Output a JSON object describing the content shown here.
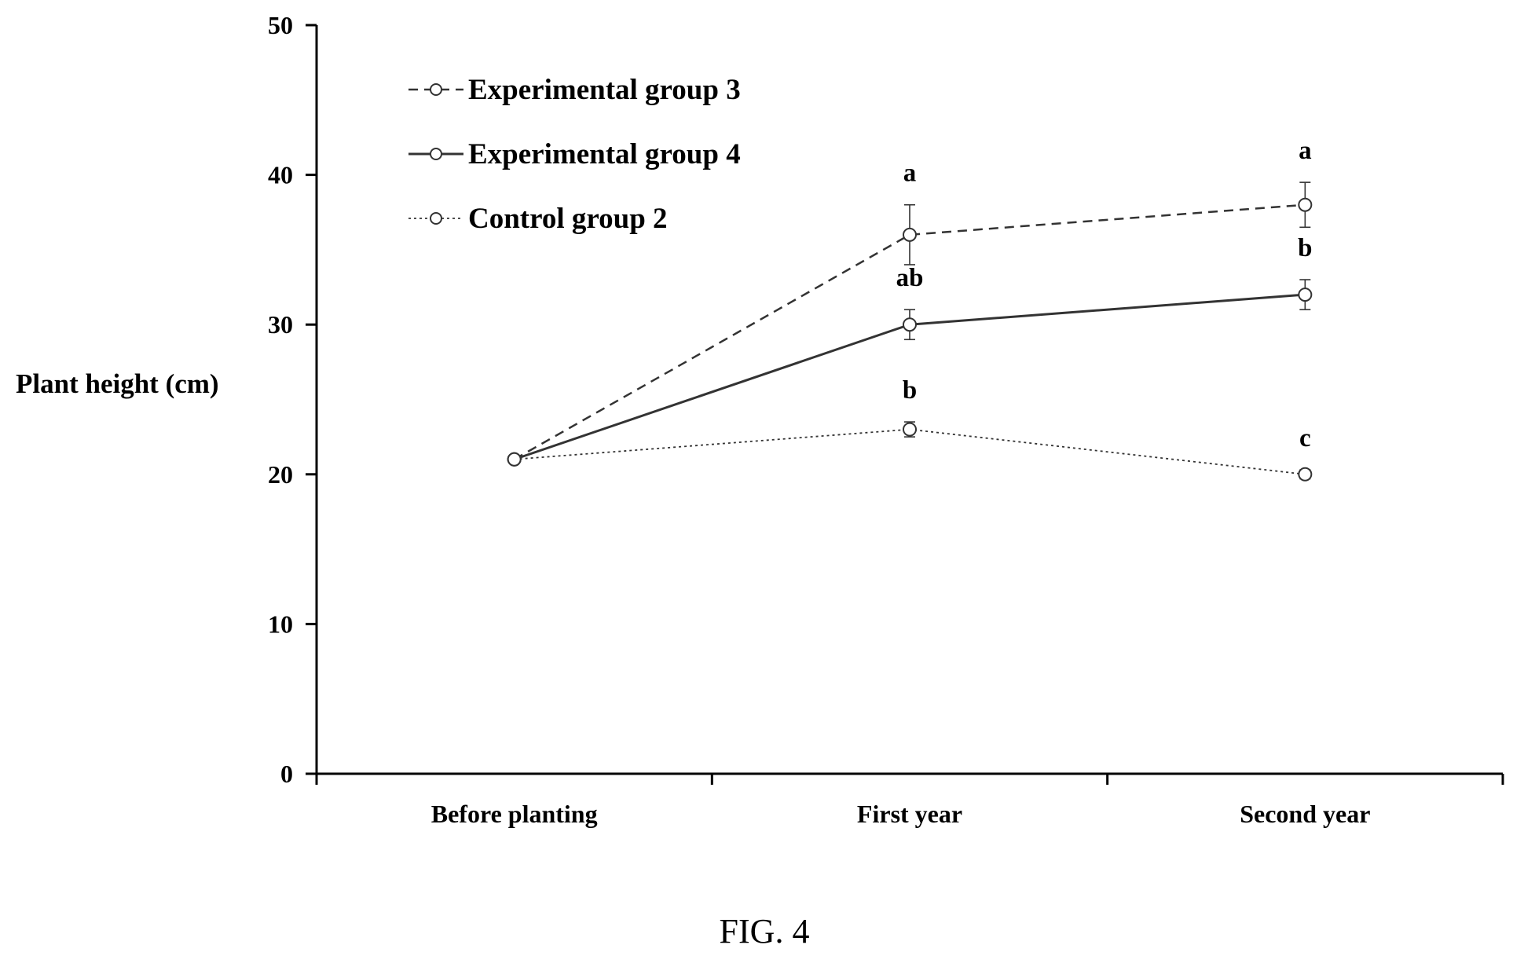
{
  "chart_data": {
    "type": "line",
    "title": "",
    "xlabel": "",
    "ylabel": "Plant height (cm)",
    "ylim": [
      0,
      50
    ],
    "yticks": [
      0,
      10,
      20,
      30,
      40,
      50
    ],
    "categories": [
      "Before planting",
      "First year",
      "Second year"
    ],
    "grid": false,
    "legend_position": "top-left",
    "series": [
      {
        "name": "Experimental group 3",
        "line_style": "dashed",
        "values": [
          21,
          36,
          38
        ],
        "errors": [
          0,
          2,
          1.5
        ],
        "significance": [
          "",
          "a",
          "a"
        ]
      },
      {
        "name": "Experimental group 4",
        "line_style": "solid",
        "values": [
          21,
          30,
          32
        ],
        "errors": [
          0,
          1,
          1
        ],
        "significance": [
          "",
          "ab",
          "b"
        ]
      },
      {
        "name": "Control group 2",
        "line_style": "dotted",
        "values": [
          21,
          23,
          20
        ],
        "errors": [
          0,
          0.5,
          0.3
        ],
        "significance": [
          "",
          "b",
          "c"
        ]
      }
    ]
  },
  "caption": "FIG. 4"
}
